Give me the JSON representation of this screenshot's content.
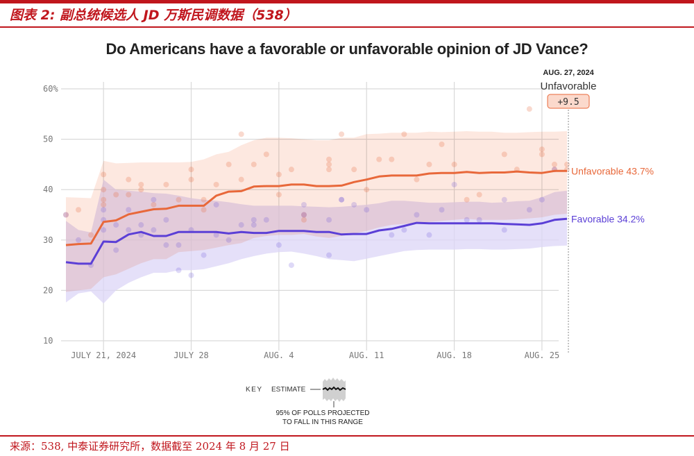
{
  "figure": {
    "title": "图表 2:   副总统候选人 JD 万斯民调数据（538）",
    "source": "来源：538, 中泰证券研究所，数据截至 2024 年 8 月 27 日"
  },
  "colors": {
    "brand_red": "#c0161d",
    "unfavorable": "#e8683a",
    "favorable": "#5b3fd6",
    "unfavorable_band": "#fbd9cc",
    "favorable_band": "#dcd6f7",
    "grid": "#d9d9d9"
  },
  "chart_data": {
    "type": "line",
    "title": "Do Americans have a favorable or unfavorable opinion of JD Vance?",
    "xlabel": "",
    "ylabel": "",
    "ylim": [
      10,
      60
    ],
    "yticks": [
      10,
      20,
      30,
      40,
      50,
      60
    ],
    "ytick_labels": [
      "10",
      "20",
      "30",
      "40",
      "50",
      "60%"
    ],
    "x_domain": [
      "2024-07-18",
      "2024-08-27"
    ],
    "xticks": [
      {
        "date": "2024-07-21",
        "label": "JULY 21, 2024"
      },
      {
        "date": "2024-07-28",
        "label": "JULY 28"
      },
      {
        "date": "2024-08-04",
        "label": "AUG. 4"
      },
      {
        "date": "2024-08-11",
        "label": "AUG. 11"
      },
      {
        "date": "2024-08-18",
        "label": "AUG. 18"
      },
      {
        "date": "2024-08-25",
        "label": "AUG. 25"
      }
    ],
    "grid": true,
    "x_days_from_jul18": [
      0,
      1,
      2,
      3,
      4,
      5,
      6,
      7,
      8,
      9,
      10,
      11,
      12,
      13,
      14,
      15,
      16,
      17,
      18,
      19,
      20,
      21,
      22,
      23,
      24,
      25,
      26,
      27,
      28,
      29,
      30,
      31,
      32,
      33,
      34,
      35,
      36,
      37,
      38,
      39,
      40
    ],
    "series": [
      {
        "name": "Unfavorable",
        "end_label": "Unfavorable 43.7%",
        "final_value": 43.7,
        "values": [
          29.0,
          29.2,
          29.3,
          33.6,
          33.9,
          35.1,
          35.6,
          36.1,
          36.2,
          36.8,
          36.8,
          36.8,
          38.8,
          39.6,
          39.7,
          40.6,
          40.7,
          40.7,
          41.0,
          41.0,
          40.7,
          40.7,
          40.8,
          41.5,
          42.0,
          42.6,
          42.8,
          42.8,
          42.8,
          43.2,
          43.3,
          43.3,
          43.5,
          43.3,
          43.4,
          43.4,
          43.6,
          43.4,
          43.3,
          43.7,
          43.7
        ],
        "band_upper": [
          38.5,
          38.4,
          38.3,
          45.7,
          45.2,
          45.3,
          45.4,
          45.4,
          45.4,
          45.4,
          45.5,
          46.0,
          47.0,
          47.5,
          48.8,
          49.8,
          50.3,
          50.3,
          50.2,
          50.0,
          49.8,
          49.8,
          50.3,
          50.3,
          51.0,
          51.1,
          51.3,
          51.3,
          51.3,
          51.5,
          51.4,
          51.5,
          51.6,
          51.5,
          51.5,
          51.3,
          51.3,
          51.4,
          51.5,
          51.5,
          51.6
        ],
        "band_lower": [
          19.7,
          20.0,
          20.3,
          22.6,
          23.2,
          24.3,
          25.4,
          26.2,
          26.2,
          27.6,
          27.8,
          28.0,
          28.5,
          29.0,
          29.4,
          30.4,
          30.8,
          31.0,
          31.0,
          31.2,
          30.7,
          30.4,
          30.8,
          31.3,
          31.8,
          32.5,
          33.0,
          33.2,
          33.3,
          33.6,
          33.8,
          34.0,
          34.2,
          34.0,
          34.0,
          34.0,
          34.1,
          34.3,
          34.5,
          35.0,
          35.2
        ]
      },
      {
        "name": "Favorable",
        "end_label": "Favorable 34.2%",
        "final_value": 34.2,
        "values": [
          25.6,
          25.3,
          25.3,
          29.7,
          29.6,
          31.1,
          31.6,
          30.8,
          30.8,
          31.6,
          31.6,
          31.6,
          31.6,
          31.3,
          31.6,
          31.4,
          31.4,
          31.8,
          31.8,
          31.8,
          31.6,
          31.6,
          31.1,
          31.2,
          31.2,
          31.9,
          32.2,
          32.8,
          33.4,
          33.3,
          33.3,
          33.3,
          33.3,
          33.3,
          33.3,
          33.2,
          33.1,
          33.0,
          33.3,
          34.0,
          34.2
        ],
        "band_upper": [
          33.8,
          32.0,
          31.5,
          42.0,
          40.0,
          39.8,
          39.6,
          39.3,
          39.2,
          38.8,
          38.3,
          38.0,
          37.8,
          37.5,
          37.1,
          36.8,
          36.8,
          36.8,
          36.8,
          36.7,
          36.6,
          36.5,
          36.6,
          36.8,
          37.0,
          37.3,
          37.8,
          37.8,
          37.6,
          37.4,
          37.4,
          37.5,
          37.6,
          37.6,
          37.4,
          37.5,
          37.7,
          37.8,
          38.5,
          39.5,
          39.8
        ],
        "band_lower": [
          17.6,
          19.4,
          19.8,
          17.4,
          20.0,
          21.5,
          22.6,
          23.5,
          23.5,
          24.0,
          24.0,
          24.2,
          24.8,
          25.4,
          26.2,
          26.8,
          27.3,
          27.6,
          27.7,
          27.3,
          26.8,
          26.2,
          26.0,
          25.8,
          26.3,
          26.8,
          27.3,
          27.8,
          28.0,
          28.1,
          28.1,
          28.1,
          28.2,
          28.2,
          28.1,
          28.1,
          28.2,
          28.3,
          28.6,
          28.8,
          28.9
        ]
      }
    ],
    "polls": {
      "unfavorable": [
        [
          0,
          35
        ],
        [
          1,
          36
        ],
        [
          2,
          31
        ],
        [
          3,
          43
        ],
        [
          3,
          40
        ],
        [
          3,
          38
        ],
        [
          3,
          37
        ],
        [
          4,
          39
        ],
        [
          5,
          39
        ],
        [
          5,
          42
        ],
        [
          6,
          40
        ],
        [
          6,
          41
        ],
        [
          7,
          37
        ],
        [
          8,
          41
        ],
        [
          9,
          38
        ],
        [
          10,
          44
        ],
        [
          10,
          42
        ],
        [
          11,
          38
        ],
        [
          11,
          36
        ],
        [
          12,
          41
        ],
        [
          13,
          45
        ],
        [
          14,
          51
        ],
        [
          14,
          42
        ],
        [
          15,
          45
        ],
        [
          16,
          47
        ],
        [
          17,
          39
        ],
        [
          17,
          43
        ],
        [
          18,
          44
        ],
        [
          19,
          35
        ],
        [
          19,
          34
        ],
        [
          21,
          46
        ],
        [
          21,
          45
        ],
        [
          21,
          44
        ],
        [
          22,
          51
        ],
        [
          23,
          44
        ],
        [
          24,
          40
        ],
        [
          25,
          46
        ],
        [
          26,
          46
        ],
        [
          27,
          51
        ],
        [
          28,
          42
        ],
        [
          29,
          45
        ],
        [
          30,
          49
        ],
        [
          31,
          45
        ],
        [
          32,
          38
        ],
        [
          33,
          39
        ],
        [
          35,
          47
        ],
        [
          36,
          44
        ],
        [
          38,
          48
        ],
        [
          38,
          47
        ],
        [
          39,
          44
        ],
        [
          40,
          45
        ],
        [
          37,
          56
        ],
        [
          39,
          45
        ],
        [
          40,
          44
        ]
      ],
      "favorable": [
        [
          0,
          35
        ],
        [
          1,
          30
        ],
        [
          2,
          25
        ],
        [
          3,
          34
        ],
        [
          3,
          36
        ],
        [
          3,
          32
        ],
        [
          4,
          33
        ],
        [
          4,
          28
        ],
        [
          5,
          32
        ],
        [
          5,
          36
        ],
        [
          6,
          31
        ],
        [
          6,
          33
        ],
        [
          7,
          32
        ],
        [
          7,
          38
        ],
        [
          8,
          34
        ],
        [
          8,
          29
        ],
        [
          9,
          29
        ],
        [
          9,
          24
        ],
        [
          10,
          32
        ],
        [
          10,
          23
        ],
        [
          11,
          27
        ],
        [
          12,
          37
        ],
        [
          12,
          31
        ],
        [
          13,
          30
        ],
        [
          14,
          33
        ],
        [
          15,
          34
        ],
        [
          15,
          33
        ],
        [
          16,
          34
        ],
        [
          17,
          29
        ],
        [
          18,
          25
        ],
        [
          19,
          37
        ],
        [
          19,
          35
        ],
        [
          21,
          27
        ],
        [
          21,
          34
        ],
        [
          22,
          38
        ],
        [
          22,
          38
        ],
        [
          23,
          37
        ],
        [
          24,
          36
        ],
        [
          26,
          31
        ],
        [
          27,
          32
        ],
        [
          28,
          35
        ],
        [
          29,
          31
        ],
        [
          30,
          36
        ],
        [
          31,
          41
        ],
        [
          32,
          34
        ],
        [
          33,
          34
        ],
        [
          35,
          38
        ],
        [
          35,
          32
        ],
        [
          37,
          36
        ],
        [
          38,
          38
        ],
        [
          39,
          44
        ]
      ]
    },
    "annotation": {
      "date_label": "AUG. 27, 2024",
      "series_label": "Unfavorable",
      "margin": "+9.5"
    },
    "key": {
      "label": "KEY",
      "estimate": "ESTIMATE",
      "range_note_1": "95% OF POLLS PROJECTED",
      "range_note_2": "TO FALL IN THIS RANGE"
    }
  }
}
